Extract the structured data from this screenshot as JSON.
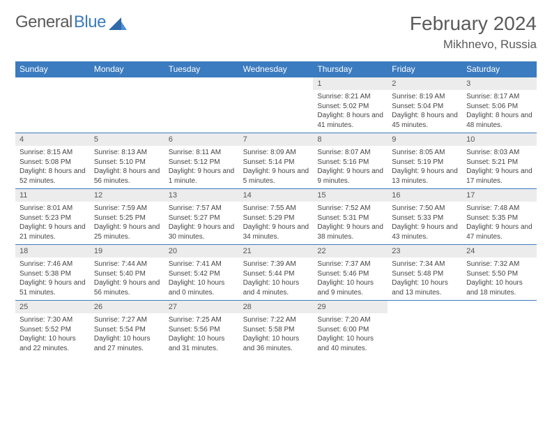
{
  "brand": {
    "name1": "General",
    "name2": "Blue"
  },
  "title": "February 2024",
  "location": "Mikhnevo, Russia",
  "colors": {
    "header_bg": "#3b7bbf",
    "daynum_bg": "#ececec",
    "text": "#444444",
    "title": "#5a5a5a"
  },
  "weekdays": [
    "Sunday",
    "Monday",
    "Tuesday",
    "Wednesday",
    "Thursday",
    "Friday",
    "Saturday"
  ],
  "weeks": [
    [
      {
        "n": "",
        "sr": "",
        "ss": "",
        "dl": ""
      },
      {
        "n": "",
        "sr": "",
        "ss": "",
        "dl": ""
      },
      {
        "n": "",
        "sr": "",
        "ss": "",
        "dl": ""
      },
      {
        "n": "",
        "sr": "",
        "ss": "",
        "dl": ""
      },
      {
        "n": "1",
        "sr": "Sunrise: 8:21 AM",
        "ss": "Sunset: 5:02 PM",
        "dl": "Daylight: 8 hours and 41 minutes."
      },
      {
        "n": "2",
        "sr": "Sunrise: 8:19 AM",
        "ss": "Sunset: 5:04 PM",
        "dl": "Daylight: 8 hours and 45 minutes."
      },
      {
        "n": "3",
        "sr": "Sunrise: 8:17 AM",
        "ss": "Sunset: 5:06 PM",
        "dl": "Daylight: 8 hours and 48 minutes."
      }
    ],
    [
      {
        "n": "4",
        "sr": "Sunrise: 8:15 AM",
        "ss": "Sunset: 5:08 PM",
        "dl": "Daylight: 8 hours and 52 minutes."
      },
      {
        "n": "5",
        "sr": "Sunrise: 8:13 AM",
        "ss": "Sunset: 5:10 PM",
        "dl": "Daylight: 8 hours and 56 minutes."
      },
      {
        "n": "6",
        "sr": "Sunrise: 8:11 AM",
        "ss": "Sunset: 5:12 PM",
        "dl": "Daylight: 9 hours and 1 minute."
      },
      {
        "n": "7",
        "sr": "Sunrise: 8:09 AM",
        "ss": "Sunset: 5:14 PM",
        "dl": "Daylight: 9 hours and 5 minutes."
      },
      {
        "n": "8",
        "sr": "Sunrise: 8:07 AM",
        "ss": "Sunset: 5:16 PM",
        "dl": "Daylight: 9 hours and 9 minutes."
      },
      {
        "n": "9",
        "sr": "Sunrise: 8:05 AM",
        "ss": "Sunset: 5:19 PM",
        "dl": "Daylight: 9 hours and 13 minutes."
      },
      {
        "n": "10",
        "sr": "Sunrise: 8:03 AM",
        "ss": "Sunset: 5:21 PM",
        "dl": "Daylight: 9 hours and 17 minutes."
      }
    ],
    [
      {
        "n": "11",
        "sr": "Sunrise: 8:01 AM",
        "ss": "Sunset: 5:23 PM",
        "dl": "Daylight: 9 hours and 21 minutes."
      },
      {
        "n": "12",
        "sr": "Sunrise: 7:59 AM",
        "ss": "Sunset: 5:25 PM",
        "dl": "Daylight: 9 hours and 25 minutes."
      },
      {
        "n": "13",
        "sr": "Sunrise: 7:57 AM",
        "ss": "Sunset: 5:27 PM",
        "dl": "Daylight: 9 hours and 30 minutes."
      },
      {
        "n": "14",
        "sr": "Sunrise: 7:55 AM",
        "ss": "Sunset: 5:29 PM",
        "dl": "Daylight: 9 hours and 34 minutes."
      },
      {
        "n": "15",
        "sr": "Sunrise: 7:52 AM",
        "ss": "Sunset: 5:31 PM",
        "dl": "Daylight: 9 hours and 38 minutes."
      },
      {
        "n": "16",
        "sr": "Sunrise: 7:50 AM",
        "ss": "Sunset: 5:33 PM",
        "dl": "Daylight: 9 hours and 43 minutes."
      },
      {
        "n": "17",
        "sr": "Sunrise: 7:48 AM",
        "ss": "Sunset: 5:35 PM",
        "dl": "Daylight: 9 hours and 47 minutes."
      }
    ],
    [
      {
        "n": "18",
        "sr": "Sunrise: 7:46 AM",
        "ss": "Sunset: 5:38 PM",
        "dl": "Daylight: 9 hours and 51 minutes."
      },
      {
        "n": "19",
        "sr": "Sunrise: 7:44 AM",
        "ss": "Sunset: 5:40 PM",
        "dl": "Daylight: 9 hours and 56 minutes."
      },
      {
        "n": "20",
        "sr": "Sunrise: 7:41 AM",
        "ss": "Sunset: 5:42 PM",
        "dl": "Daylight: 10 hours and 0 minutes."
      },
      {
        "n": "21",
        "sr": "Sunrise: 7:39 AM",
        "ss": "Sunset: 5:44 PM",
        "dl": "Daylight: 10 hours and 4 minutes."
      },
      {
        "n": "22",
        "sr": "Sunrise: 7:37 AM",
        "ss": "Sunset: 5:46 PM",
        "dl": "Daylight: 10 hours and 9 minutes."
      },
      {
        "n": "23",
        "sr": "Sunrise: 7:34 AM",
        "ss": "Sunset: 5:48 PM",
        "dl": "Daylight: 10 hours and 13 minutes."
      },
      {
        "n": "24",
        "sr": "Sunrise: 7:32 AM",
        "ss": "Sunset: 5:50 PM",
        "dl": "Daylight: 10 hours and 18 minutes."
      }
    ],
    [
      {
        "n": "25",
        "sr": "Sunrise: 7:30 AM",
        "ss": "Sunset: 5:52 PM",
        "dl": "Daylight: 10 hours and 22 minutes."
      },
      {
        "n": "26",
        "sr": "Sunrise: 7:27 AM",
        "ss": "Sunset: 5:54 PM",
        "dl": "Daylight: 10 hours and 27 minutes."
      },
      {
        "n": "27",
        "sr": "Sunrise: 7:25 AM",
        "ss": "Sunset: 5:56 PM",
        "dl": "Daylight: 10 hours and 31 minutes."
      },
      {
        "n": "28",
        "sr": "Sunrise: 7:22 AM",
        "ss": "Sunset: 5:58 PM",
        "dl": "Daylight: 10 hours and 36 minutes."
      },
      {
        "n": "29",
        "sr": "Sunrise: 7:20 AM",
        "ss": "Sunset: 6:00 PM",
        "dl": "Daylight: 10 hours and 40 minutes."
      },
      {
        "n": "",
        "sr": "",
        "ss": "",
        "dl": ""
      },
      {
        "n": "",
        "sr": "",
        "ss": "",
        "dl": ""
      }
    ]
  ]
}
